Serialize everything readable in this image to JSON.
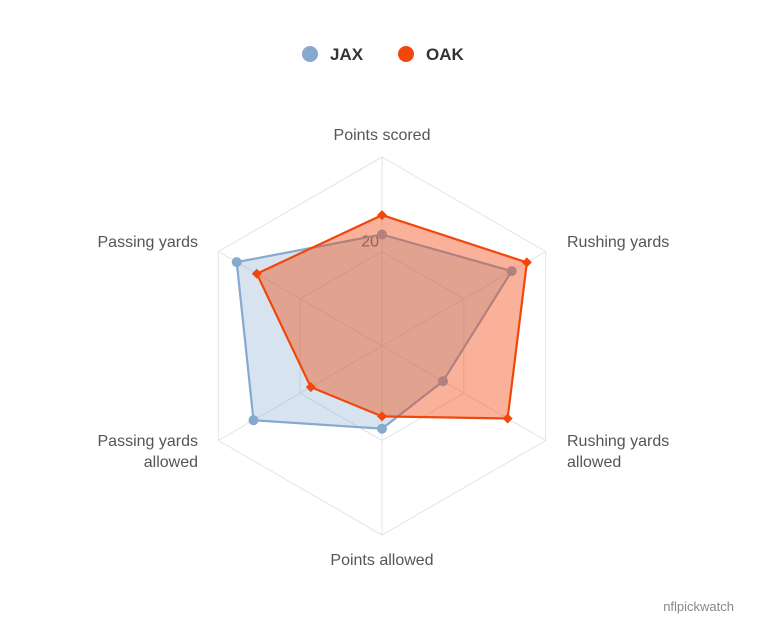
{
  "chart_data": {
    "type": "radar",
    "categories": [
      "Points scored",
      "Rushing yards",
      "Rushing yards allowed",
      "Points allowed",
      "Passing yards allowed",
      "Passing yards"
    ],
    "category_lines": [
      [
        "Points scored"
      ],
      [
        "Rushing yards"
      ],
      [
        "Rushing yards",
        "allowed"
      ],
      [
        "Points allowed"
      ],
      [
        "Passing yards",
        "allowed"
      ],
      [
        "Passing yards"
      ]
    ],
    "radial_ticks": [
      {
        "value": 20,
        "label": "20"
      }
    ],
    "rmax": 40,
    "series": [
      {
        "name": "JAX",
        "color": "#86a9d0",
        "marker": "circle",
        "values": [
          23.6,
          31.7,
          14.9,
          17.5,
          31.4,
          35.5
        ]
      },
      {
        "name": "OAK",
        "color": "#f1470c",
        "marker": "diamond",
        "values": [
          27.7,
          35.4,
          30.7,
          14.9,
          17.4,
          30.6
        ]
      }
    ],
    "legend_position": "top-center",
    "grid": true
  },
  "credit": "nflpickwatch"
}
